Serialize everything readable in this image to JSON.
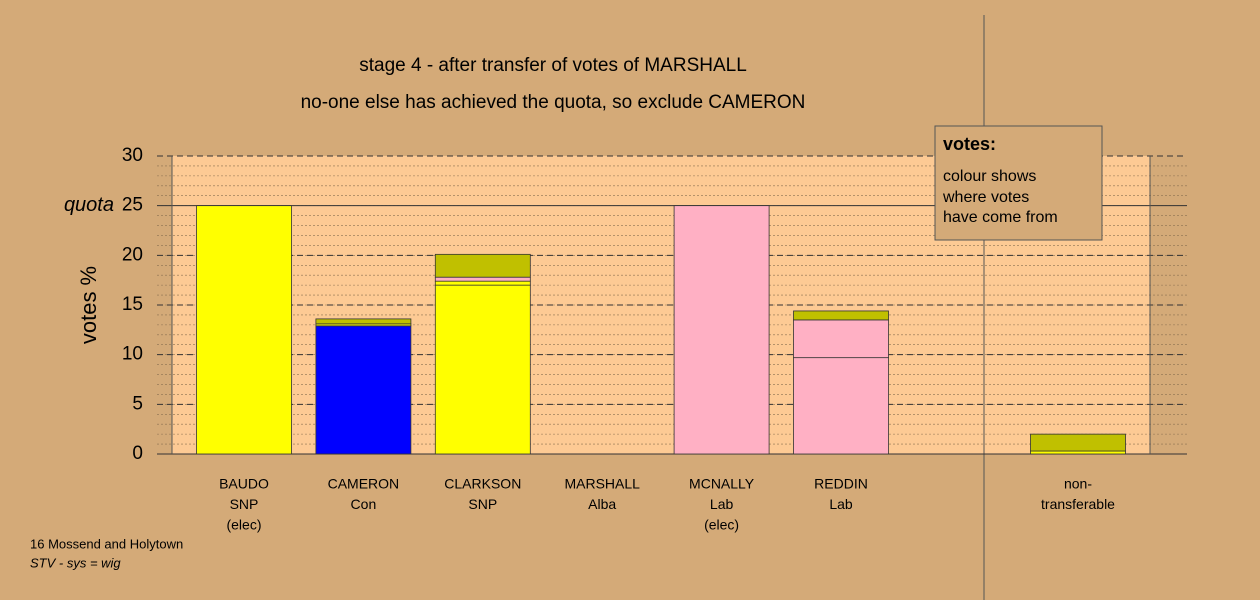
{
  "chart_data": {
    "type": "stacked-bar",
    "title": "stage 4 - after transfer of votes of MARSHALL",
    "subtitle": "no-one else has achieved the quota, so exclude CAMERON",
    "y_label": "votes %",
    "categories": [
      [
        "BAUDO",
        "SNP",
        "(elec)"
      ],
      [
        "CAMERON",
        "Con"
      ],
      [
        "CLARKSON",
        "SNP"
      ],
      [
        "MARSHALL",
        "Alba"
      ],
      [
        "MCNALLY",
        "Lab",
        "(elec)"
      ],
      [
        "REDDIN",
        "Lab"
      ],
      [
        "non-",
        "transferable"
      ]
    ],
    "series": [
      {
        "colors": [
          "#ffff00",
          "#0000ff",
          "#ffff00",
          "#c0c000",
          "#ffb0c4",
          "#ffb0c4",
          "#ffff00"
        ],
        "values": [
          25,
          12.9,
          17.0,
          0,
          25,
          9.7,
          0
        ]
      },
      {
        "color": "#ffff00",
        "values": [
          0,
          0.2,
          0.4,
          0,
          0,
          0,
          0.3
        ]
      },
      {
        "color": "#ffb0c4",
        "values": [
          0,
          0,
          0.4,
          0,
          0,
          3.8,
          0
        ]
      },
      {
        "color": "#c0c000",
        "values": [
          0,
          0.5,
          2.3,
          0,
          0,
          0.9,
          1.7
        ]
      }
    ],
    "ylim": [
      0,
      30
    ],
    "yticks": [
      0,
      5,
      10,
      15,
      20,
      25,
      30
    ],
    "minor_step": 1,
    "quota": {
      "value": 25,
      "label": "quota"
    },
    "legend": {
      "title": "votes:",
      "lines": [
        "colour shows",
        "where votes",
        "have come from"
      ]
    },
    "notes": [
      "16 Mossend and Holytown",
      "STV - sys = wig"
    ]
  }
}
